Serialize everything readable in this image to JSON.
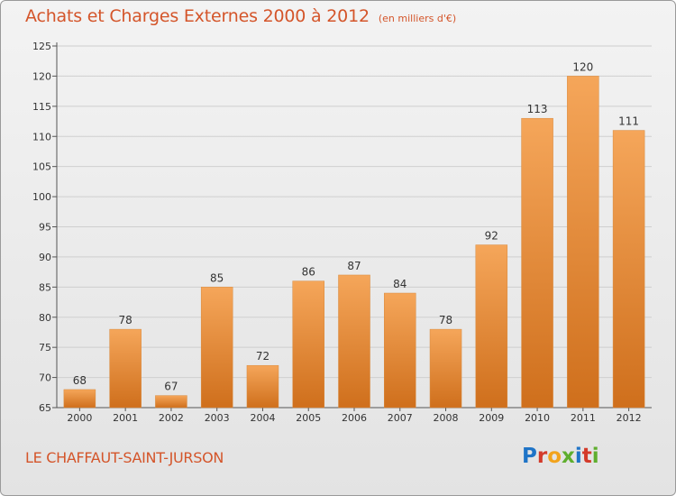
{
  "header": {
    "title": "Achats et Charges Externes 2000 à 2012",
    "subtitle": "(en milliers d'€)"
  },
  "footer": {
    "place": "LE CHAFFAUT-SAINT-JURSON",
    "logo": "Proxiti"
  },
  "colors": {
    "title": "#d4552a",
    "bar_top": "#f5a65a",
    "bar_bottom": "#cf6f1c"
  },
  "chart_data": {
    "type": "bar",
    "categories": [
      "2000",
      "2001",
      "2002",
      "2003",
      "2004",
      "2005",
      "2006",
      "2007",
      "2008",
      "2009",
      "2010",
      "2011",
      "2012"
    ],
    "values": [
      68,
      78,
      67,
      85,
      72,
      86,
      87,
      84,
      78,
      92,
      113,
      120,
      111
    ],
    "ylim": [
      65,
      125
    ],
    "yticks": [
      65,
      70,
      75,
      80,
      85,
      90,
      95,
      100,
      105,
      110,
      115,
      120,
      125
    ],
    "grid": true,
    "data_labels": true
  }
}
